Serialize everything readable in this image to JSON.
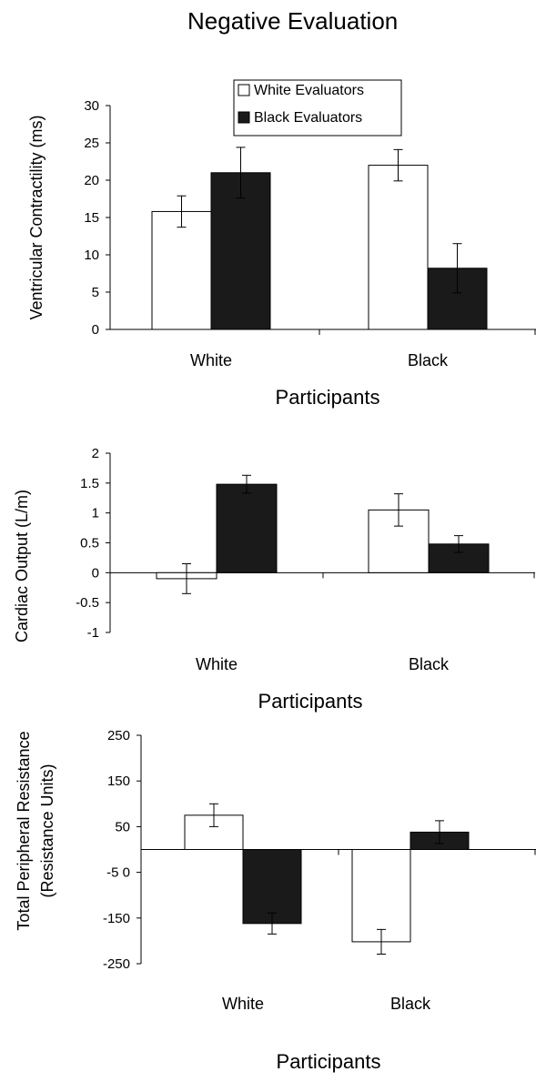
{
  "page_title": "Negative Evaluation",
  "colors": {
    "white_bar": "#ffffff",
    "black_bar": "#1a1a1a",
    "axis": "#000000"
  },
  "chart_data": [
    {
      "type": "bar",
      "xlabel": "Participants",
      "ylabel": "Ventricular Contractility (ms)",
      "categories": [
        "White",
        "Black"
      ],
      "ylim": [
        0,
        30
      ],
      "yticks": [
        0,
        5,
        10,
        15,
        20,
        25,
        30
      ],
      "ytick_labels": [
        "0",
        "5",
        "10",
        "15",
        "20",
        "25",
        "30"
      ],
      "legend": [
        "White Evaluators",
        "Black Evaluators"
      ],
      "legend_position": "top-right",
      "series": [
        {
          "name": "White Evaluators",
          "values": [
            15.8,
            22.0
          ],
          "errors": [
            2.1,
            2.1
          ]
        },
        {
          "name": "Black Evaluators",
          "values": [
            21.0,
            8.2
          ],
          "errors": [
            3.4,
            3.3
          ]
        }
      ]
    },
    {
      "type": "bar",
      "xlabel": "Participants",
      "ylabel": "Cardiac Output (L/m)",
      "categories": [
        "White",
        "Black"
      ],
      "ylim": [
        -1,
        2
      ],
      "yticks": [
        -1,
        -0.5,
        0,
        0.5,
        1,
        1.5,
        2
      ],
      "ytick_labels": [
        "-1",
        "-0.5",
        "0",
        "0.5",
        "1",
        "1.5",
        "2"
      ],
      "series": [
        {
          "name": "White Evaluators",
          "values": [
            -0.1,
            1.05
          ],
          "errors": [
            0.25,
            0.27
          ]
        },
        {
          "name": "Black Evaluators",
          "values": [
            1.48,
            0.48
          ],
          "errors": [
            0.15,
            0.14
          ]
        }
      ]
    },
    {
      "type": "bar",
      "xlabel": "Participants",
      "ylabel": "Total Peripheral Resistance (Resistance Units)",
      "ylabel_lines": [
        "Total Peripheral Resistance",
        "(Resistance Units)"
      ],
      "categories": [
        "White",
        "Black"
      ],
      "ylim": [
        -250,
        250
      ],
      "yticks": [
        -250,
        -150,
        -50,
        50,
        150,
        250
      ],
      "ytick_labels": [
        "-250",
        "-150",
        "-5 0",
        "50",
        "150",
        "250"
      ],
      "series": [
        {
          "name": "White Evaluators",
          "values": [
            75,
            -202
          ],
          "errors": [
            25,
            27
          ]
        },
        {
          "name": "Black Evaluators",
          "values": [
            -162,
            38
          ],
          "errors": [
            23,
            25
          ]
        }
      ]
    }
  ]
}
